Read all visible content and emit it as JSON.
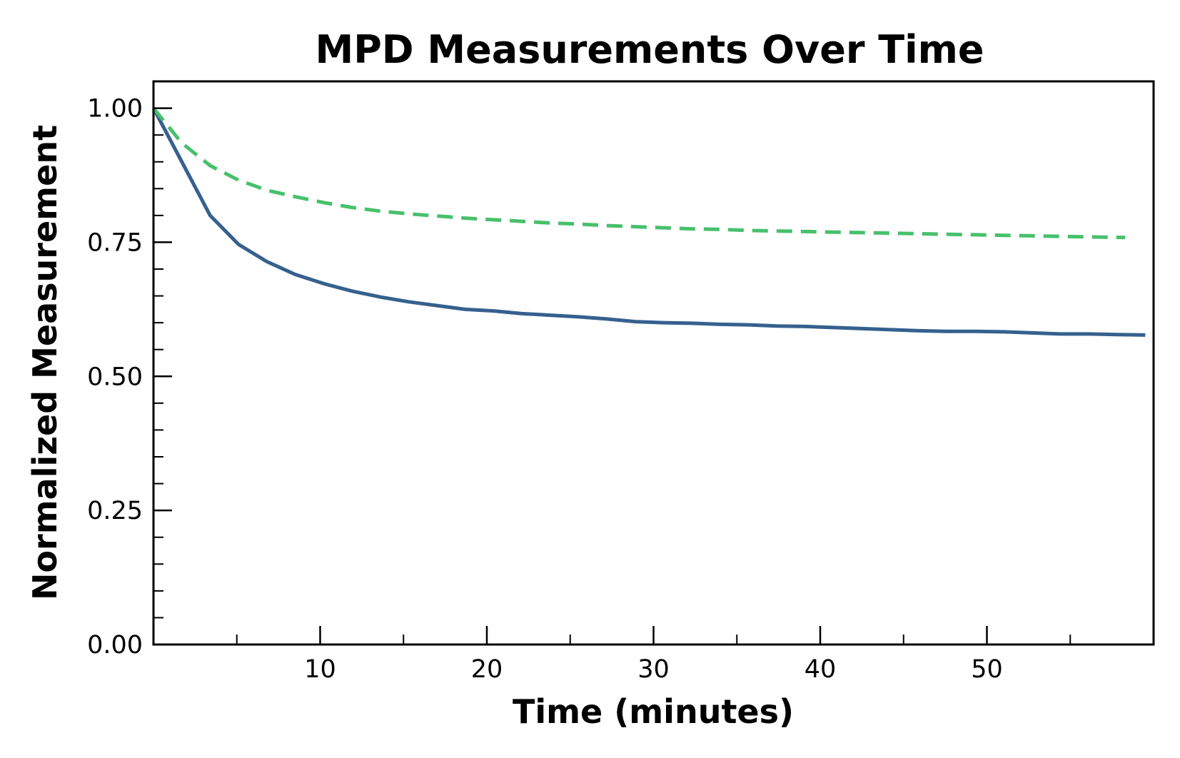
{
  "chart_data": {
    "type": "line",
    "title": "MPD Measurements Over Time",
    "xlabel": "Time (minutes)",
    "ylabel": "Normalized Measurement",
    "xlim": [
      0,
      60
    ],
    "ylim": [
      0,
      1.05
    ],
    "xticks": [
      10,
      20,
      30,
      40,
      50
    ],
    "xtick_labels": [
      "10",
      "20",
      "30",
      "40",
      "50"
    ],
    "yticks": [
      0,
      0.25,
      0.5,
      0.75,
      1.0
    ],
    "ytick_labels": [
      "0.00",
      "0.25",
      "0.50",
      "0.75",
      "1.00"
    ],
    "grid": false,
    "legend": false,
    "series": [
      {
        "style": "solid",
        "color": "#36608e",
        "x": [
          0,
          1.7,
          3.4,
          5.1,
          6.8,
          8.5,
          10.2,
          11.9,
          13.6,
          15.3,
          17,
          18.7,
          20.4,
          22.1,
          23.8,
          25.5,
          27.2,
          28.9,
          30.6,
          32.3,
          34,
          35.7,
          37.4,
          39.1,
          40.8,
          42.5,
          44.2,
          45.9,
          47.6,
          49.3,
          51,
          52.7,
          54.4,
          56.1,
          57.8,
          59.5
        ],
        "values": [
          1.0,
          0.9,
          0.8,
          0.746,
          0.714,
          0.69,
          0.673,
          0.659,
          0.648,
          0.639,
          0.632,
          0.625,
          0.622,
          0.617,
          0.614,
          0.611,
          0.607,
          0.602,
          0.6,
          0.599,
          0.597,
          0.596,
          0.594,
          0.593,
          0.591,
          0.589,
          0.587,
          0.585,
          0.584,
          0.584,
          0.583,
          0.581,
          0.579,
          0.579,
          0.578,
          0.577
        ]
      },
      {
        "style": "dashed",
        "color": "#48c06c",
        "x": [
          0,
          1.7,
          3.4,
          5.1,
          6.8,
          8.5,
          10.2,
          11.9,
          13.6,
          15.3,
          17,
          18.7,
          20.4,
          22.1,
          23.8,
          25.5,
          27.2,
          28.9,
          30.6,
          32.3,
          34,
          35.7,
          37.4,
          39.1,
          40.8,
          42.5,
          44.2,
          45.9,
          47.6,
          49.3,
          51,
          52.7,
          54.4,
          56.1,
          58.3
        ],
        "values": [
          1.0,
          0.935,
          0.893,
          0.866,
          0.847,
          0.835,
          0.824,
          0.815,
          0.808,
          0.803,
          0.799,
          0.795,
          0.792,
          0.789,
          0.786,
          0.784,
          0.781,
          0.779,
          0.777,
          0.775,
          0.774,
          0.772,
          0.771,
          0.77,
          0.769,
          0.768,
          0.767,
          0.766,
          0.765,
          0.764,
          0.763,
          0.762,
          0.761,
          0.76,
          0.759
        ]
      }
    ]
  }
}
